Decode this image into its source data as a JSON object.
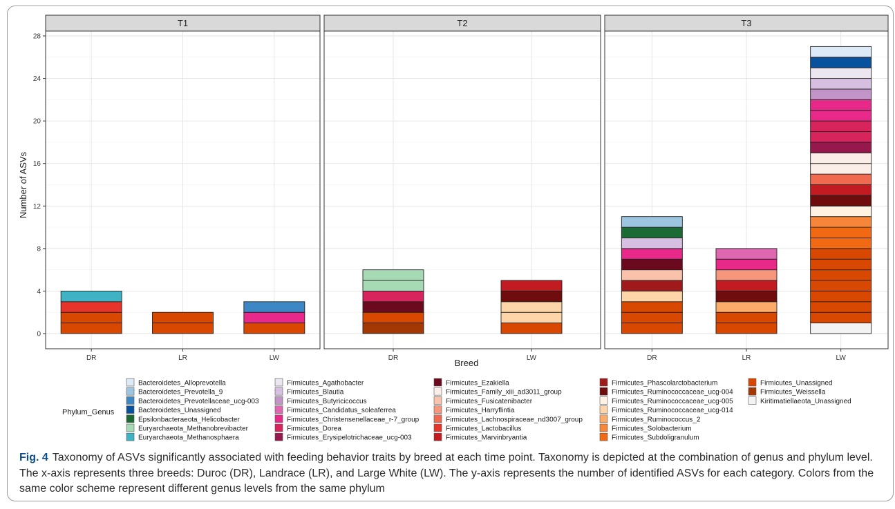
{
  "figure_label": "Fig. 4",
  "caption": "Taxonomy of ASVs significantly associated with feeding behavior traits by breed at each time point. Taxonomy is depicted at the combination of genus and phylum level. The x-axis represents three breeds: Duroc (DR), Landrace (LR), and Large White (LW). The y-axis represents the number of identified ASVs for each category. Colors from the same color scheme represent different genus levels from the same phylum",
  "chart_data": {
    "type": "bar",
    "stacked": true,
    "xlabel": "Breed",
    "ylabel": "Number of ASVs",
    "ylim": [
      0,
      28
    ],
    "yticks": [
      0,
      4,
      8,
      12,
      16,
      20,
      24,
      28
    ],
    "grid": true,
    "legend_title": "Phylum_Genus",
    "legend_position": "bottom",
    "colors": {
      "Bacteroidetes_Alloprevotella": "#dce9f6",
      "Bacteroidetes_Prevotella_9": "#9ec5e0",
      "Bacteroidetes_Prevotellaceae_ucg-003": "#3c87c4",
      "Bacteroidetes_Unassigned": "#08519c",
      "Epsilonbacteraeota_Helicobacter": "#1b6a34",
      "Euryarchaeota_Methanobrevibacter": "#a6dab5",
      "Euryarchaeota_Methanosphaera": "#3fb3c3",
      "Firmicutes_Agathobacter": "#ece6f1",
      "Firmicutes_Blautia": "#d6bfe0",
      "Firmicutes_Butyricicoccus": "#c394c7",
      "Firmicutes_Candidatus_soleaferrea": "#df67b1",
      "Firmicutes_Christensenellaceae_r-7_group": "#e8298a",
      "Firmicutes_Dorea": "#d8245d",
      "Firmicutes_Erysipelotrichaceae_ucg-003": "#96184d",
      "Firmicutes_Ezakiella": "#6b0a1e",
      "Firmicutes_Family_xiii_ad3011_group": "#fbeee9",
      "Firmicutes_Fusicatenibacter": "#fbc2ab",
      "Firmicutes_Harryflintia": "#f5967d",
      "Firmicutes_Lachnospiraceae_nd3007_group": "#f06a4f",
      "Firmicutes_Lactobacillus": "#e6342b",
      "Firmicutes_Marvinbryantia": "#c21b22",
      "Firmicutes_Phascolarctobacterium": "#a01a1c",
      "Firmicutes_Ruminococcaceae_ucg-004": "#6e0c0e",
      "Firmicutes_Ruminococcaceae_ucg-005": "#fff2e3",
      "Firmicutes_Ruminococcaceae_ucg-014": "#fdd5a8",
      "Firmicutes_Ruminococcus_2": "#fbac6b",
      "Firmicutes_Solobacterium": "#f7863a",
      "Firmicutes_Subdoligranulum": "#f16913",
      "Firmicutes_Unassigned": "#d94801",
      "Firmicutes_Weissella": "#a33804",
      "Kiritimatiellaeota_Unassigned": "#f3f3f3"
    },
    "legend_columns": [
      [
        "Bacteroidetes_Alloprevotella",
        "Bacteroidetes_Prevotella_9",
        "Bacteroidetes_Prevotellaceae_ucg-003",
        "Bacteroidetes_Unassigned",
        "Epsilonbacteraeota_Helicobacter",
        "Euryarchaeota_Methanobrevibacter",
        "Euryarchaeota_Methanosphaera"
      ],
      [
        "Firmicutes_Agathobacter",
        "Firmicutes_Blautia",
        "Firmicutes_Butyricicoccus",
        "Firmicutes_Candidatus_soleaferrea",
        "Firmicutes_Christensenellaceae_r-7_group",
        "Firmicutes_Dorea",
        "Firmicutes_Erysipelotrichaceae_ucg-003"
      ],
      [
        "Firmicutes_Ezakiella",
        "Firmicutes_Family_xiii_ad3011_group",
        "Firmicutes_Fusicatenibacter",
        "Firmicutes_Harryflintia",
        "Firmicutes_Lachnospiraceae_nd3007_group",
        "Firmicutes_Lactobacillus",
        "Firmicutes_Marvinbryantia"
      ],
      [
        "Firmicutes_Phascolarctobacterium",
        "Firmicutes_Ruminococcaceae_ucg-004",
        "Firmicutes_Ruminococcaceae_ucg-005",
        "Firmicutes_Ruminococcaceae_ucg-014",
        "Firmicutes_Ruminococcus_2",
        "Firmicutes_Solobacterium",
        "Firmicutes_Subdoligranulum"
      ],
      [
        "Firmicutes_Unassigned",
        "Firmicutes_Weissella",
        "Kiritimatiellaeota_Unassigned"
      ]
    ],
    "panels": [
      {
        "name": "T1",
        "categories": [
          "DR",
          "LR",
          "LW"
        ],
        "stacks": [
          [
            "Firmicutes_Unassigned",
            "Firmicutes_Unassigned",
            "Firmicutes_Lactobacillus",
            "Euryarchaeota_Methanosphaera"
          ],
          [
            "Firmicutes_Unassigned",
            "Firmicutes_Unassigned"
          ],
          [
            "Firmicutes_Unassigned",
            "Firmicutes_Christensenellaceae_r-7_group",
            "Bacteroidetes_Prevotellaceae_ucg-003"
          ]
        ]
      },
      {
        "name": "T2",
        "categories": [
          "DR",
          "LW"
        ],
        "stacks": [
          [
            "Firmicutes_Weissella",
            "Firmicutes_Unassigned",
            "Firmicutes_Ezakiella",
            "Firmicutes_Dorea",
            "Euryarchaeota_Methanobrevibacter",
            "Euryarchaeota_Methanobrevibacter"
          ],
          [
            "Firmicutes_Unassigned",
            "Firmicutes_Ruminococcaceae_ucg-014",
            "Firmicutes_Ruminococcaceae_ucg-014",
            "Firmicutes_Ruminococcaceae_ucg-004",
            "Firmicutes_Marvinbryantia"
          ]
        ]
      },
      {
        "name": "T3",
        "categories": [
          "DR",
          "LR",
          "LW"
        ],
        "stacks": [
          [
            "Firmicutes_Unassigned",
            "Firmicutes_Unassigned",
            "Firmicutes_Unassigned",
            "Firmicutes_Ruminococcaceae_ucg-014",
            "Firmicutes_Phascolarctobacterium",
            "Firmicutes_Fusicatenibacter",
            "Firmicutes_Ezakiella",
            "Firmicutes_Christensenellaceae_r-7_group",
            "Firmicutes_Blautia",
            "Epsilonbacteraeota_Helicobacter",
            "Bacteroidetes_Prevotella_9"
          ],
          [
            "Firmicutes_Unassigned",
            "Firmicutes_Unassigned",
            "Firmicutes_Ruminococcus_2",
            "Firmicutes_Ruminococcaceae_ucg-004",
            "Firmicutes_Marvinbryantia",
            "Firmicutes_Harryflintia",
            "Firmicutes_Christensenellaceae_r-7_group",
            "Firmicutes_Candidatus_soleaferrea"
          ],
          [
            "Kiritimatiellaeota_Unassigned",
            "Firmicutes_Unassigned",
            "Firmicutes_Unassigned",
            "Firmicutes_Unassigned",
            "Firmicutes_Unassigned",
            "Firmicutes_Unassigned",
            "Firmicutes_Unassigned",
            "Firmicutes_Unassigned",
            "Firmicutes_Subdoligranulum",
            "Firmicutes_Subdoligranulum",
            "Firmicutes_Solobacterium",
            "Firmicutes_Ruminococcaceae_ucg-005",
            "Firmicutes_Ruminococcaceae_ucg-004",
            "Firmicutes_Marvinbryantia",
            "Firmicutes_Lachnospiraceae_nd3007_group",
            "Firmicutes_Family_xiii_ad3011_group",
            "Firmicutes_Family_xiii_ad3011_group",
            "Firmicutes_Erysipelotrichaceae_ucg-003",
            "Firmicutes_Dorea",
            "Firmicutes_Dorea",
            "Firmicutes_Christensenellaceae_r-7_group",
            "Firmicutes_Christensenellaceae_r-7_group",
            "Firmicutes_Butyricicoccus",
            "Firmicutes_Blautia",
            "Firmicutes_Agathobacter",
            "Bacteroidetes_Unassigned",
            "Bacteroidetes_Alloprevotella"
          ]
        ]
      }
    ]
  }
}
